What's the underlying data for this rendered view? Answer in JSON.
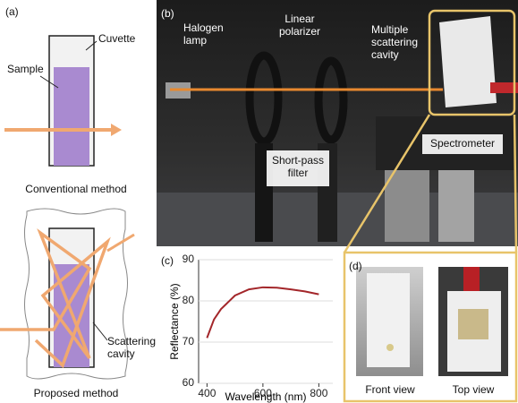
{
  "panel_a": {
    "label": "(a)",
    "cuvette": "Cuvette",
    "sample": "Sample",
    "conventional": "Conventional method",
    "proposed": "Proposed method",
    "scattering_cavity": [
      "Scattering",
      "cavity"
    ]
  },
  "panel_b": {
    "label": "(b)",
    "halogen_lamp": [
      "Halogen",
      "lamp"
    ],
    "linear_polarizer": [
      "Linear",
      "polarizer"
    ],
    "cavity": [
      "Multiple",
      "scattering",
      "cavity"
    ],
    "filter": [
      "Short-pass",
      "filter"
    ],
    "spectrometer": "Spectrometer"
  },
  "chart_data": {
    "type": "line",
    "panel_label": "(c)",
    "x_label": "Wavelength (nm)",
    "y_label": "Reflectance (%)",
    "x": [
      400,
      425,
      450,
      500,
      550,
      600,
      650,
      700,
      750,
      800
    ],
    "values": [
      71,
      75.5,
      78,
      81.3,
      82.8,
      83.3,
      83.2,
      82.8,
      82.3,
      81.6
    ],
    "color": "#a3262a",
    "xlim": [
      370,
      850
    ],
    "ylim": [
      60,
      90
    ],
    "xticks": [
      400,
      600,
      800
    ],
    "yticks": [
      60,
      70,
      80,
      90
    ]
  },
  "panel_d": {
    "label": "(d)",
    "front": "Front view",
    "top": "Top view"
  }
}
